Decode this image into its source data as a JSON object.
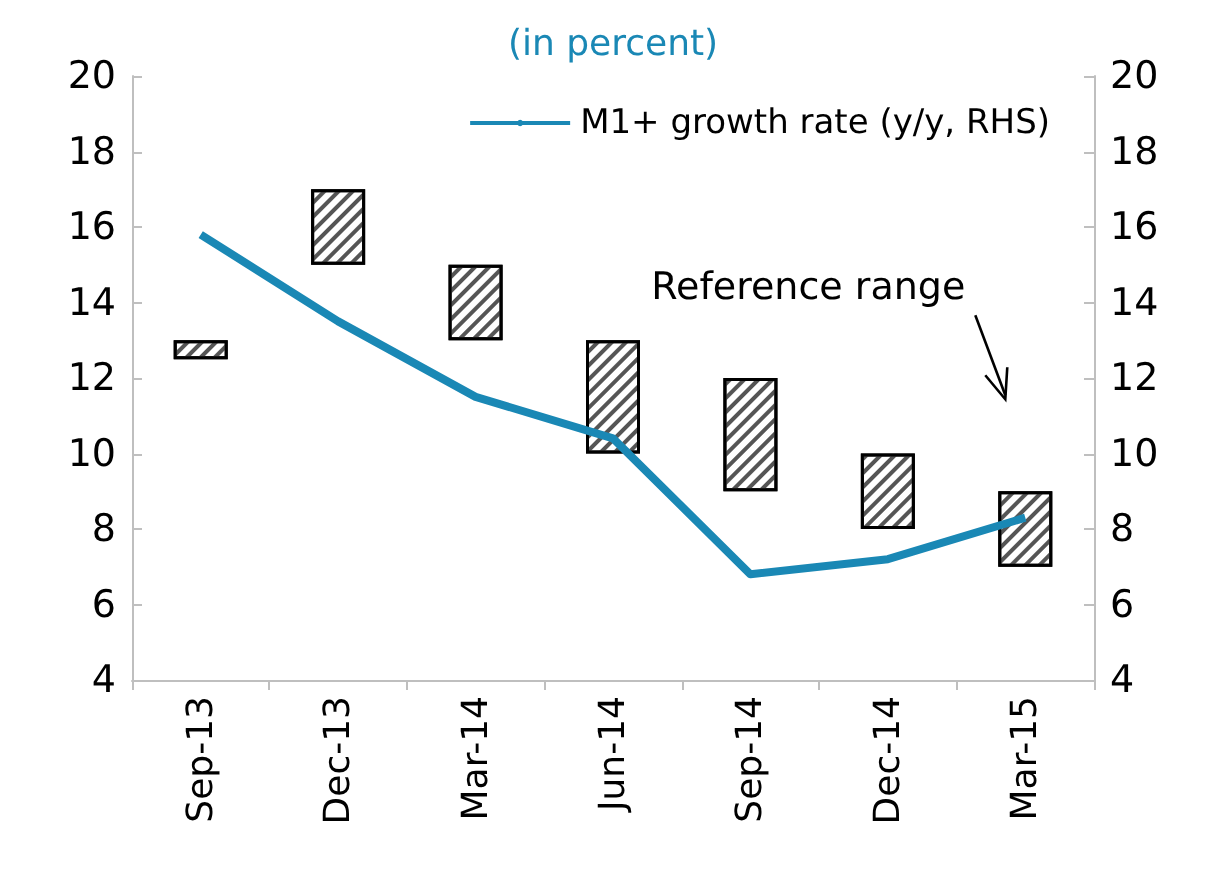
{
  "chart_data": {
    "type": "bar",
    "title": "(in percent)",
    "categories": [
      "Sep-13",
      "Dec-13",
      "Mar-14",
      "Jun-14",
      "Sep-14",
      "Dec-14",
      "Mar-15"
    ],
    "series": [
      {
        "color": "#ffffff",
        "base": [
          12.5,
          15,
          13,
          10,
          9,
          8,
          7
        ],
        "values": [
          0.5,
          2,
          2,
          3,
          3,
          2,
          2
        ]
      },
      {
        "type": "line",
        "name": "M1+ growth rate (y/y, RHS)",
        "color": "#1a88b5",
        "values": [
          15.8,
          13.5,
          11.5,
          10.4,
          6.8,
          7.2,
          8.3
        ]
      }
    ],
    "ylim": [
      4,
      20
    ],
    "yticks": [
      4,
      6,
      8,
      10,
      12,
      14,
      16,
      18,
      20
    ],
    "y2lim": [
      4,
      20
    ],
    "y2ticks": [
      4,
      6,
      8,
      10,
      12,
      14,
      16,
      18,
      20
    ],
    "annotations": [
      "Reference range"
    ],
    "legend": "top right",
    "grid": false,
    "marker": "none",
    "line_style": "solid"
  }
}
